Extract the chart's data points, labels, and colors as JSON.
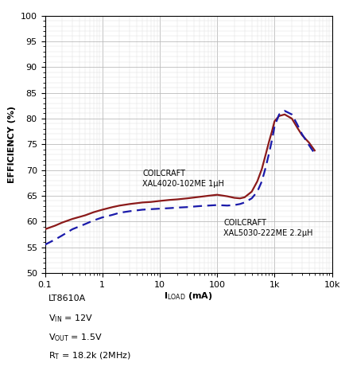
{
  "title": "",
  "xlabel_main": "I",
  "xlabel_sub": "LOAD",
  "xlabel_unit": " (mA)",
  "ylabel": "EFFICIENCY (%)",
  "xlim": [
    0.1,
    10000
  ],
  "ylim": [
    50,
    100
  ],
  "yticks": [
    50,
    55,
    60,
    65,
    70,
    75,
    80,
    85,
    90,
    95,
    100
  ],
  "xtick_labels": [
    "0.1",
    "1",
    "10",
    "100",
    "1k",
    "10k"
  ],
  "xtick_vals": [
    0.1,
    1,
    10,
    100,
    1000,
    10000
  ],
  "curve1_color": "#8B1A1A",
  "curve2_color": "#1a1aaa",
  "ann1_x": 5.0,
  "ann1_y": 66.5,
  "ann1_text": "COILCRAFT\nXAL4020-102ME 1μH",
  "ann2_x": 130,
  "ann2_y": 60.5,
  "ann2_text": "COILCRAFT\nXAL5030-222ME 2.2μH",
  "note1": "LT8610A",
  "note2": "V",
  "note2_sub": "IN",
  "note2_rest": " = 12V",
  "note3": "V",
  "note3_sub": "OUT",
  "note3_rest": " = 1.5V",
  "note4": "R",
  "note4_sub": "T",
  "note4_rest": " = 18.2k (2MHz)",
  "curve1_x": [
    0.1,
    0.15,
    0.2,
    0.3,
    0.5,
    0.7,
    1.0,
    1.5,
    2.0,
    3.0,
    5.0,
    7.0,
    10,
    15,
    20,
    30,
    50,
    70,
    100,
    150,
    200,
    250,
    300,
    400,
    500,
    600,
    700,
    800,
    900,
    1000,
    1200,
    1500,
    2000,
    2500,
    3000,
    4000,
    5000
  ],
  "curve1_y": [
    58.5,
    59.2,
    59.8,
    60.5,
    61.2,
    61.8,
    62.3,
    62.8,
    63.1,
    63.4,
    63.7,
    63.8,
    64.0,
    64.2,
    64.3,
    64.5,
    64.8,
    65.0,
    65.2,
    64.9,
    64.6,
    64.5,
    64.7,
    65.8,
    67.8,
    70.2,
    73.0,
    75.5,
    77.5,
    79.5,
    80.5,
    80.8,
    80.0,
    78.2,
    76.8,
    75.3,
    73.8
  ],
  "curve2_x": [
    0.1,
    0.15,
    0.2,
    0.3,
    0.5,
    0.7,
    1.0,
    1.5,
    2.0,
    3.0,
    5.0,
    7.0,
    10,
    15,
    20,
    30,
    50,
    70,
    100,
    150,
    200,
    250,
    300,
    400,
    500,
    600,
    700,
    800,
    900,
    1000,
    1200,
    1500,
    2000,
    2500,
    3000,
    4000,
    5000
  ],
  "curve2_y": [
    55.5,
    56.5,
    57.3,
    58.5,
    59.5,
    60.2,
    60.8,
    61.3,
    61.7,
    62.0,
    62.3,
    62.4,
    62.5,
    62.6,
    62.7,
    62.8,
    63.0,
    63.1,
    63.2,
    63.1,
    63.2,
    63.4,
    63.7,
    64.5,
    65.8,
    67.8,
    70.5,
    73.2,
    75.8,
    78.5,
    80.8,
    81.5,
    80.8,
    78.8,
    77.0,
    74.8,
    73.2
  ],
  "bg_color": "#ffffff",
  "grid_major_color": "#bbbbbb",
  "grid_minor_color": "#dddddd"
}
